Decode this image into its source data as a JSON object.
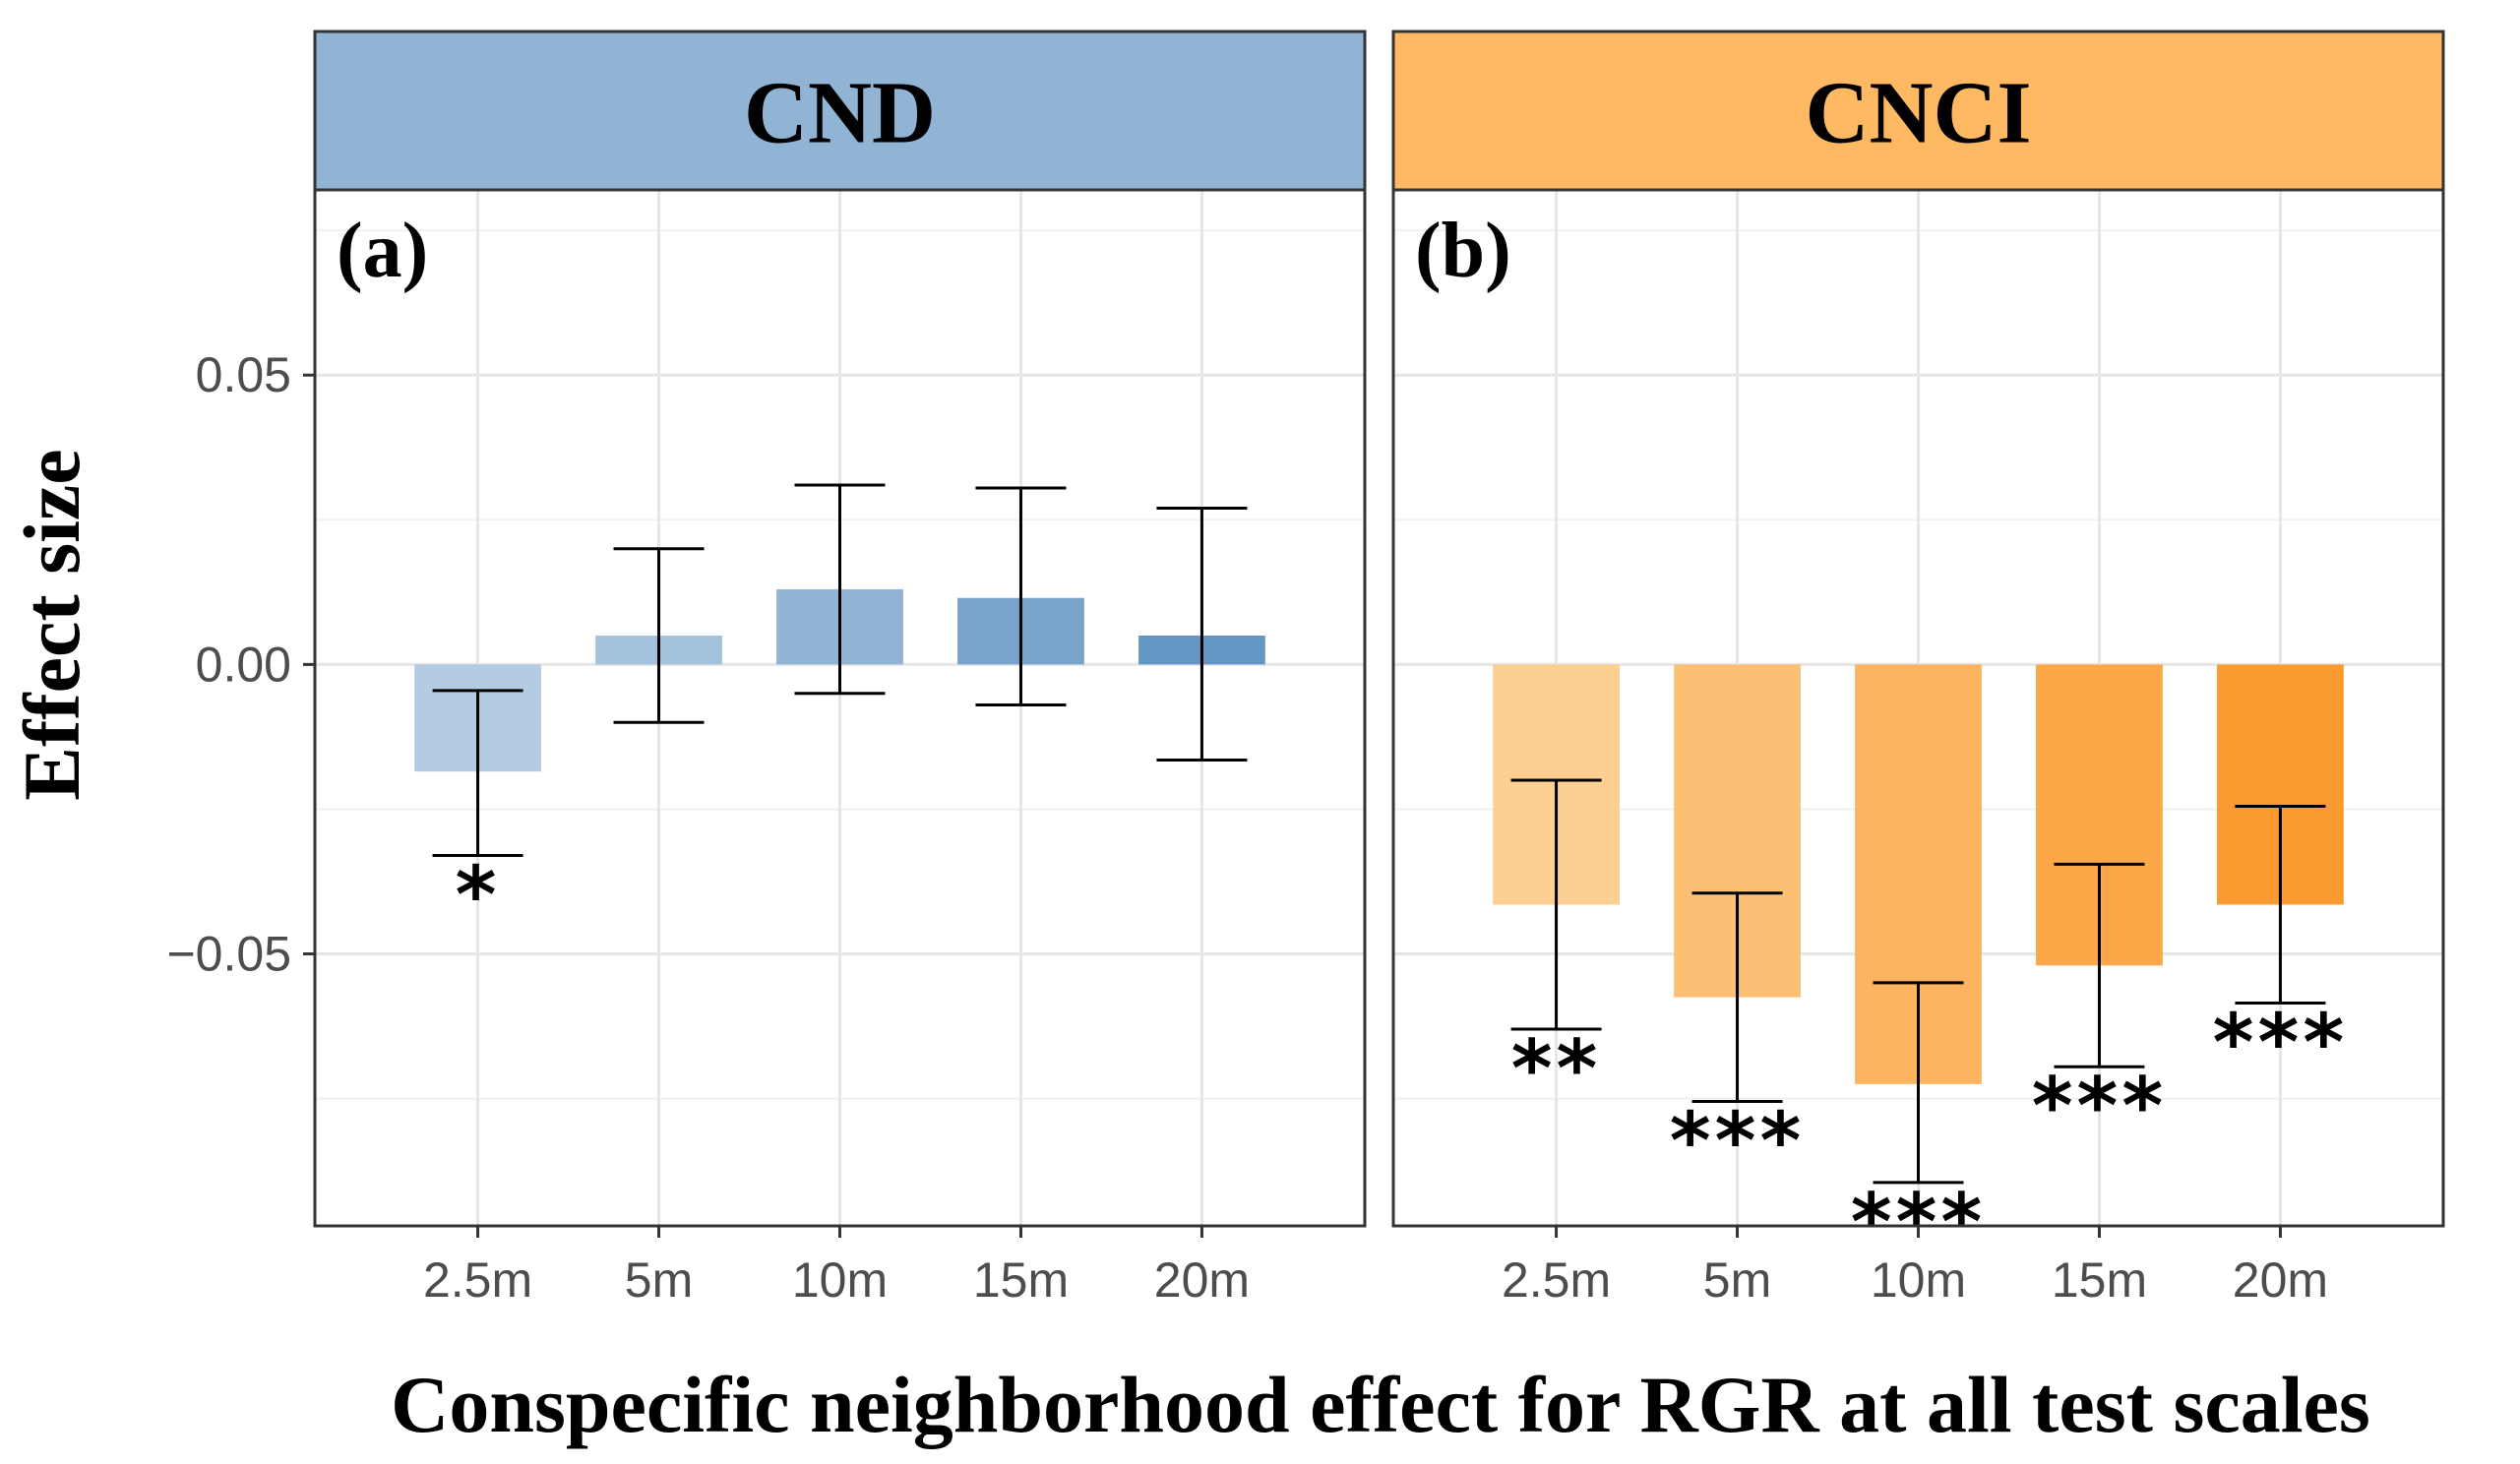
{
  "chart_data": {
    "type": "bar",
    "xlabel": "Conspecific neighborhood effect  for RGR at all test scales",
    "ylabel": "Effect size",
    "ylim": [
      -0.097,
      0.082
    ],
    "y_ticks": [
      {
        "value": 0.05,
        "label": "0.05"
      },
      {
        "value": 0.0,
        "label": "0.00"
      },
      {
        "value": -0.05,
        "label": "−0.05"
      }
    ],
    "y_minor_gridlines": [
      0.025,
      -0.025,
      -0.075,
      0.075
    ],
    "grid": true,
    "categories": [
      "2.5m",
      "5m",
      "10m",
      "15m",
      "20m"
    ],
    "panels": [
      {
        "strip": "CND",
        "tag": "(a)",
        "strip_color": "#92b4d4",
        "values": [
          -0.0185,
          0.005,
          0.013,
          0.0115,
          0.005
        ],
        "error_low": [
          -0.033,
          -0.01,
          -0.005,
          -0.007,
          -0.0165
        ],
        "error_high": [
          -0.0045,
          0.02,
          0.031,
          0.0305,
          0.027
        ],
        "significance": [
          "*",
          "",
          "",
          "",
          ""
        ],
        "bar_colors": [
          "#b4cce2",
          "#a5c2dd",
          "#91b3d4",
          "#7aa3cb",
          "#6597c5"
        ]
      },
      {
        "strip": "CNCI",
        "tag": "(b)",
        "strip_color": "#ffb963",
        "values": [
          -0.0415,
          -0.0575,
          -0.0725,
          -0.052,
          -0.0415
        ],
        "error_low": [
          -0.063,
          -0.0755,
          -0.0895,
          -0.0695,
          -0.0585
        ],
        "error_high": [
          -0.02,
          -0.0395,
          -0.055,
          -0.0345,
          -0.0245
        ],
        "significance": [
          "**",
          "***",
          "***",
          "***",
          "***"
        ],
        "bar_colors": [
          "#fecf93",
          "#fdbf74",
          "#fdb460",
          "#fca748",
          "#fb9a30"
        ]
      }
    ]
  }
}
